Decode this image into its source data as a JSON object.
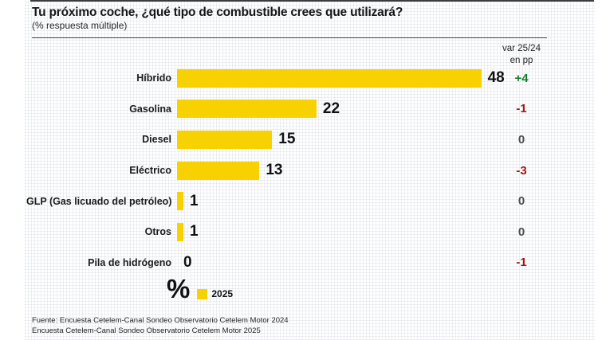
{
  "header": {
    "title": "Tu próximo coche, ¿qué tipo de combustible crees que utilizará?",
    "subtitle": "(% respuesta múltiple)"
  },
  "var_header": {
    "line1": "var 25/24",
    "line2": "en pp"
  },
  "chart_data": {
    "type": "bar",
    "orientation": "horizontal",
    "title": "Tu próximo coche, ¿qué tipo de combustible crees que utilizará?",
    "subtitle": "(% respuesta múltiple)",
    "unit_label": "%",
    "xlim": [
      0,
      50
    ],
    "grid": false,
    "categories": [
      "Híbrido",
      "Gasolina",
      "Diesel",
      "Eléctrico",
      "GLP (Gas licuado del petróleo)",
      "Otros",
      "Pila de hidrógeno"
    ],
    "series": [
      {
        "name": "2025",
        "color": "#f8d100",
        "values": [
          48,
          22,
          15,
          13,
          1,
          1,
          0
        ]
      }
    ],
    "var_column": {
      "header": "var 25/24 en pp",
      "values": [
        "+4",
        "-1",
        "0",
        "-3",
        "0",
        "0",
        "-1"
      ],
      "types": [
        "positive",
        "negative",
        "neutral",
        "negative",
        "neutral",
        "neutral",
        "negative"
      ]
    },
    "legend": {
      "position": "bottom",
      "entries": [
        {
          "label": "2025",
          "swatch_color": "#f8d100"
        }
      ]
    }
  },
  "legend": {
    "unit_symbol": "%",
    "entry_label": "2025"
  },
  "footer": {
    "line1": "Fuente: Encuesta Cetelem-Canal Sondeo Observatorio Cetelem Motor 2024",
    "line2": "Encuesta Cetelem-Canal Sondeo Observatorio Cetelem Motor 2025"
  },
  "colors": {
    "bar": "#f8d100",
    "positive": "#127c2a",
    "negative": "#a61717",
    "neutral": "#4d4d4d",
    "title_text": "#161616"
  }
}
